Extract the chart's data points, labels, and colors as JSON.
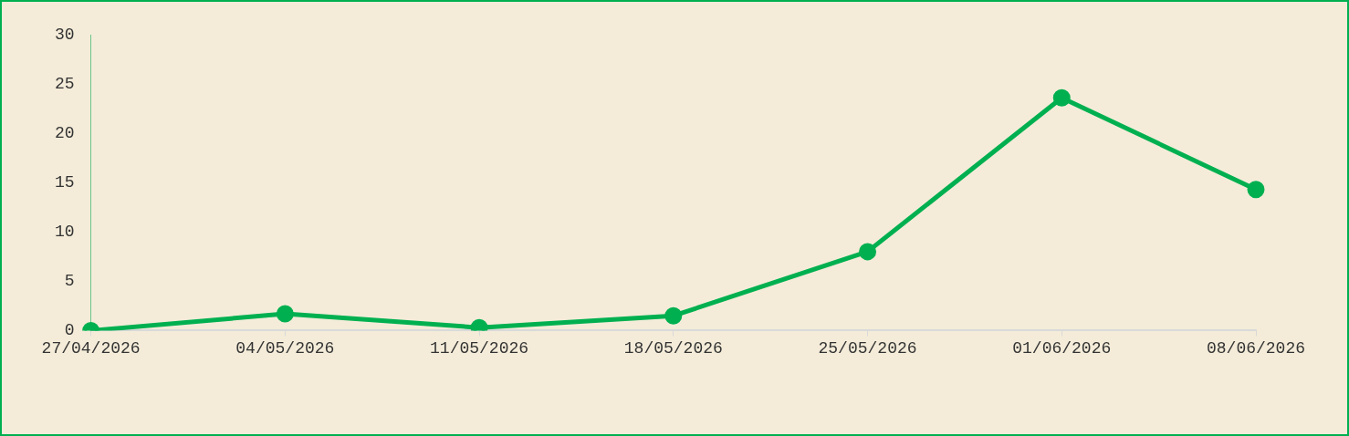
{
  "chart_data": {
    "type": "line",
    "categories": [
      "27/04/2026",
      "04/05/2026",
      "11/05/2026",
      "18/05/2026",
      "25/05/2026",
      "01/06/2026",
      "08/06/2026"
    ],
    "series": [
      {
        "color": "#00b050",
        "values": [
          0,
          1.7,
          0.3,
          1.5,
          8,
          23.6,
          14.3
        ]
      }
    ],
    "ylim": [
      0,
      30
    ],
    "yticks": [
      0,
      5,
      10,
      15,
      20,
      25,
      30
    ],
    "grid": false,
    "legend": false,
    "marker": "circle",
    "line_style": "solid"
  }
}
